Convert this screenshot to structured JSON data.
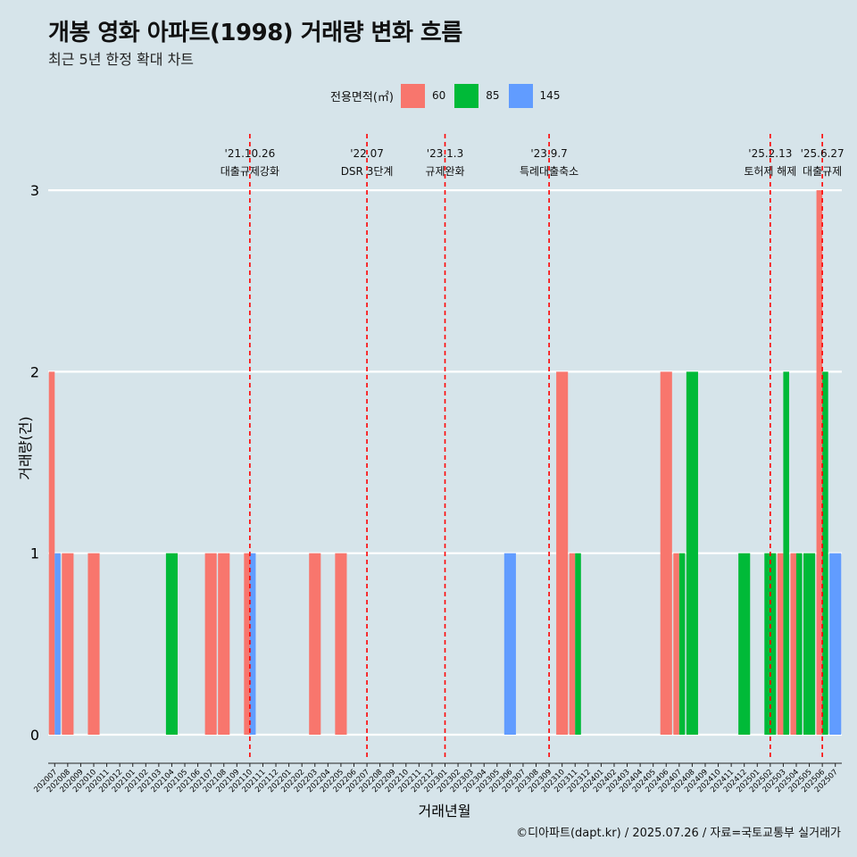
{
  "title": "개봉 영화 아파트(1998) 거래량 변화 흐름",
  "subtitle": "최근 5년 한정 확대 차트",
  "caption": "©디아파트(dapt.kr) / 2025.07.26 / 자료=국토교통부 실거래가",
  "legend": {
    "title": "전용면적(㎡)",
    "items": [
      {
        "label": "60",
        "color": "#F8766D"
      },
      {
        "label": "85",
        "color": "#00BA38"
      },
      {
        "label": "145",
        "color": "#619CFF"
      }
    ]
  },
  "chart_data": {
    "type": "bar",
    "xlabel": "거래년월",
    "ylabel": "거래량(건)",
    "ylim": [
      0,
      3
    ],
    "yticks": [
      0,
      1,
      2,
      3
    ],
    "categories": [
      "202007",
      "202008",
      "202009",
      "202010",
      "202011",
      "202012",
      "202101",
      "202102",
      "202103",
      "202104",
      "202105",
      "202106",
      "202107",
      "202108",
      "202109",
      "202110",
      "202111",
      "202112",
      "202201",
      "202202",
      "202203",
      "202204",
      "202205",
      "202206",
      "202207",
      "202208",
      "202209",
      "202210",
      "202211",
      "202212",
      "202301",
      "202302",
      "202303",
      "202304",
      "202305",
      "202306",
      "202307",
      "202308",
      "202309",
      "202310",
      "202311",
      "202312",
      "202401",
      "202402",
      "202403",
      "202404",
      "202405",
      "202406",
      "202407",
      "202408",
      "202409",
      "202410",
      "202411",
      "202412",
      "202501",
      "202502",
      "202503",
      "202504",
      "202505",
      "202506",
      "202507"
    ],
    "series": [
      {
        "name": "60",
        "color": "#F8766D",
        "values": [
          2,
          1,
          0,
          1,
          0,
          0,
          0,
          0,
          0,
          0,
          0,
          0,
          1,
          1,
          0,
          1,
          0,
          0,
          0,
          0,
          1,
          0,
          1,
          0,
          0,
          0,
          0,
          0,
          0,
          0,
          0,
          0,
          0,
          0,
          0,
          0,
          0,
          0,
          0,
          2,
          1,
          0,
          0,
          0,
          0,
          0,
          0,
          2,
          1,
          0,
          0,
          0,
          0,
          0,
          0,
          0,
          1,
          1,
          0,
          3,
          0
        ]
      },
      {
        "name": "85",
        "color": "#00BA38",
        "values": [
          0,
          0,
          0,
          0,
          0,
          0,
          0,
          0,
          0,
          1,
          0,
          0,
          0,
          0,
          0,
          0,
          0,
          0,
          0,
          0,
          0,
          0,
          0,
          0,
          0,
          0,
          0,
          0,
          0,
          0,
          0,
          0,
          0,
          0,
          0,
          0,
          0,
          0,
          0,
          0,
          1,
          0,
          0,
          0,
          0,
          0,
          0,
          0,
          1,
          2,
          0,
          0,
          0,
          1,
          0,
          1,
          2,
          1,
          1,
          2,
          0
        ]
      },
      {
        "name": "145",
        "color": "#619CFF",
        "values": [
          1,
          0,
          0,
          0,
          0,
          0,
          0,
          0,
          0,
          0,
          0,
          0,
          0,
          0,
          0,
          1,
          0,
          0,
          0,
          0,
          0,
          0,
          0,
          0,
          0,
          0,
          0,
          0,
          0,
          0,
          0,
          0,
          0,
          0,
          0,
          1,
          0,
          0,
          0,
          0,
          0,
          0,
          0,
          0,
          0,
          0,
          0,
          0,
          0,
          0,
          0,
          0,
          0,
          0,
          0,
          0,
          0,
          0,
          0,
          0,
          1
        ]
      }
    ],
    "annotations": [
      {
        "month": "202110",
        "date": "'21.10.26",
        "label": "대출규제강화"
      },
      {
        "month": "202207",
        "date": "'22.07",
        "label": "DSR 3단계"
      },
      {
        "month": "202301",
        "date": "'23.1.3",
        "label": "규제완화"
      },
      {
        "month": "202309",
        "date": "'23.9.7",
        "label": "특례대출축소"
      },
      {
        "month": "202502",
        "date": "'25.2.13",
        "label": "토허제 해제"
      },
      {
        "month": "202506",
        "date": "'25.6.27",
        "label": "대출규제"
      }
    ],
    "grid": true,
    "legend_position": "top"
  }
}
